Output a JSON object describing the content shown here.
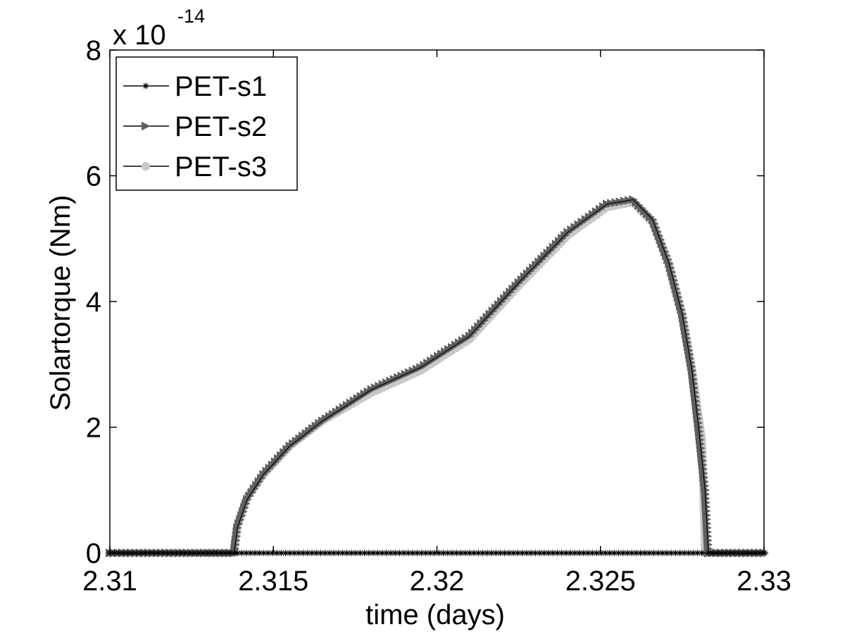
{
  "chart_data": {
    "type": "line",
    "xlabel": "time (days)",
    "ylabel": "Solartorque (Nm)",
    "y_exponent": {
      "base": "x 10",
      "power": "-14"
    },
    "xlim": [
      2.31,
      2.33
    ],
    "ylim": [
      0,
      8
    ],
    "x_ticks": [
      2.31,
      2.315,
      2.32,
      2.325,
      2.33
    ],
    "x_tick_labels": [
      "2.31",
      "2.315",
      "2.32",
      "2.325",
      "2.33"
    ],
    "y_ticks": [
      0,
      2,
      4,
      6,
      8
    ],
    "y_tick_labels": [
      "0",
      "2",
      "4",
      "6",
      "8"
    ],
    "grid": false,
    "legend": "top-left",
    "series": [
      {
        "name": "PET-s1",
        "marker": "asterisk",
        "color": "#000000",
        "x": [
          2.31,
          2.3138,
          2.3139,
          2.3281,
          2.3283,
          2.33
        ],
        "y": [
          0.0,
          0.0,
          0.0,
          0.0,
          0.0,
          0.0
        ]
      },
      {
        "name": "PET-s2",
        "marker": "triangle-right",
        "color": "#606060",
        "x": [
          2.31,
          2.3138,
          2.3139,
          2.3142,
          2.3147,
          2.3155,
          2.3165,
          2.318,
          2.3195,
          2.321,
          2.3225,
          2.324,
          2.3252,
          2.326,
          2.3266,
          2.3271,
          2.3275,
          2.3278,
          2.328,
          2.3282,
          2.3283,
          2.33
        ],
        "y": [
          0.0,
          0.0,
          0.4,
          0.85,
          1.25,
          1.7,
          2.1,
          2.6,
          2.95,
          3.45,
          4.3,
          5.1,
          5.55,
          5.62,
          5.3,
          4.6,
          3.8,
          2.9,
          2.0,
          1.0,
          0.0,
          0.0
        ]
      },
      {
        "name": "PET-s3",
        "marker": "circle",
        "color": "#c8c8c8",
        "x": [
          2.31,
          2.3138,
          2.3139,
          2.3142,
          2.3147,
          2.3155,
          2.3165,
          2.318,
          2.3195,
          2.321,
          2.3225,
          2.324,
          2.3252,
          2.326,
          2.3266,
          2.3271,
          2.3275,
          2.3278,
          2.3281,
          2.3282,
          2.33
        ],
        "y": [
          0.0,
          0.0,
          0.45,
          0.9,
          1.25,
          1.7,
          2.1,
          2.55,
          2.9,
          3.4,
          4.25,
          5.05,
          5.5,
          5.58,
          5.25,
          4.6,
          3.8,
          2.9,
          1.8,
          0.0,
          0.0
        ]
      }
    ]
  }
}
